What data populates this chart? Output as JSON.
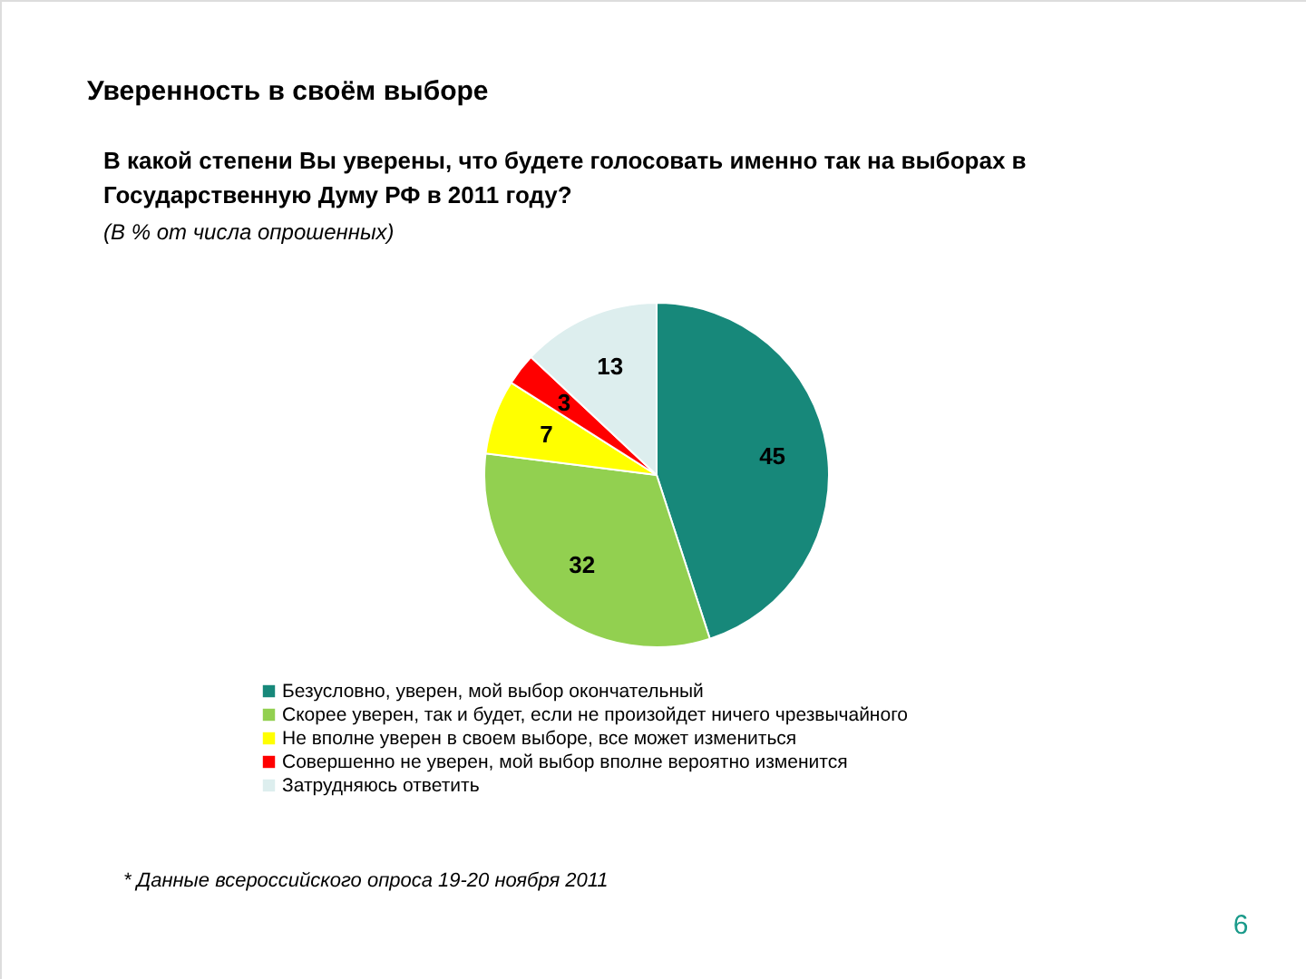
{
  "chart_data": {
    "type": "pie",
    "title": "Уверенность в своём выборе",
    "subtitle": "В какой степени Вы уверены, что будете голосовать именно так на выборах в Государственную Думу РФ в 2011 году?",
    "categories": [
      "Безусловно, уверен, мой выбор окончательный",
      "Скорее уверен, так и будет, если не произойдет ничего чрезвычайного",
      "Не вполне уверен в своем выборе, все может измениться",
      "Совершенно не уверен, мой выбор вполне вероятно изменится",
      "Затрудняюсь ответить"
    ],
    "values": [
      45,
      32,
      7,
      3,
      13
    ],
    "colors": [
      "#17887a",
      "#92d050",
      "#ffff00",
      "#ff0000",
      "#ddeeee"
    ],
    "data_labels": true,
    "legend": "bottom",
    "annotations": [
      "(В % от числа опрошенных)",
      "* Данные всероссийского опроса 19-20 ноября 2011",
      "6"
    ]
  }
}
